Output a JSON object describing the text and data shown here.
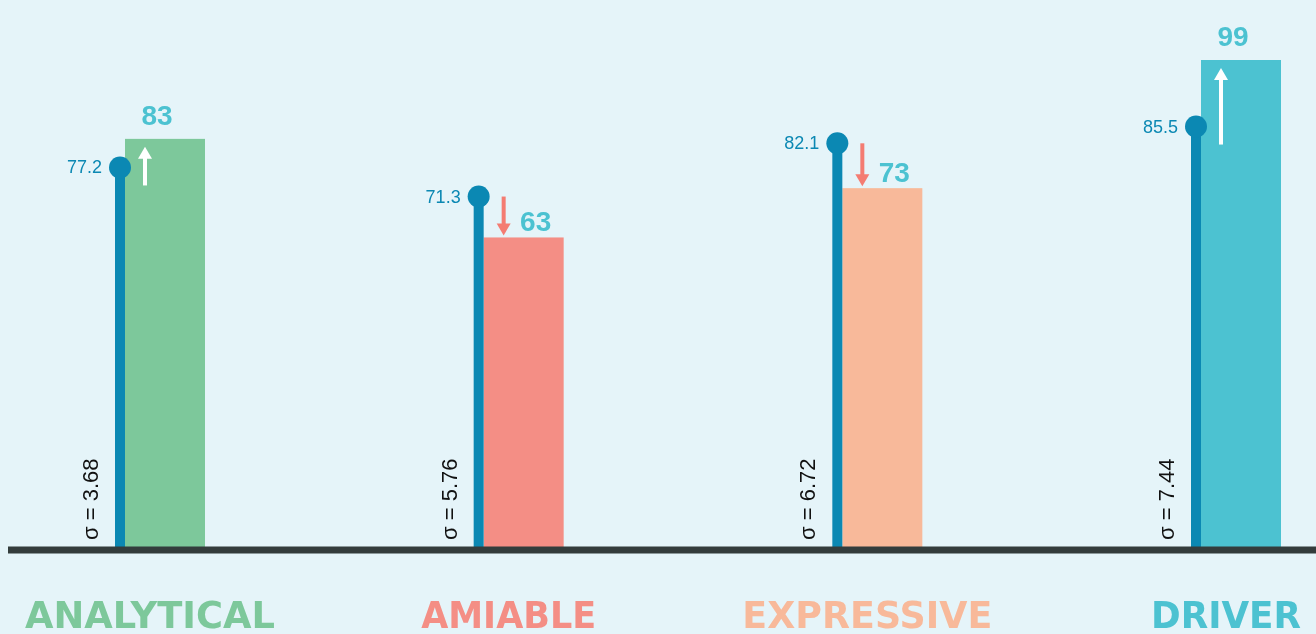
{
  "chart_data": {
    "type": "bar",
    "categories": [
      "ANALYTICAL",
      "AMIABLE",
      "EXPRESSIVE",
      "DRIVER"
    ],
    "series": [
      {
        "colors": [
          "#7dc89b",
          "#f48e85",
          "#f8b99a",
          "#4cc2d1"
        ],
        "values": [
          83,
          63,
          73,
          99
        ]
      },
      {
        "type": "lollipop",
        "color": "#0b88b3",
        "values": [
          77.2,
          71.3,
          82.1,
          85.5
        ]
      }
    ],
    "data_labels": true,
    "annotations": [
      "σ = 3.68",
      "σ = 5.76",
      "σ = 6.72",
      "σ = 7.44"
    ]
  }
}
